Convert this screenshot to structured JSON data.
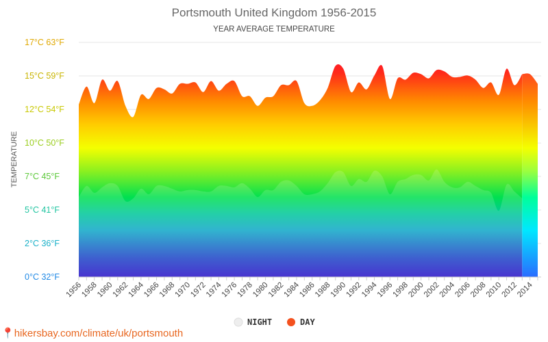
{
  "title": "Portsmouth United Kingdom 1956-2015",
  "subtitle": "YEAR AVERAGE TEMPERATURE",
  "credit": "hikersbay.com/climate/uk/portsmouth",
  "chart_data": {
    "type": "area",
    "title": "Portsmouth United Kingdom 1956-2015",
    "subtitle": "YEAR AVERAGE TEMPERATURE",
    "ylabel": "TEMPERATURE",
    "ylim": [
      0,
      17
    ],
    "yticks": [
      {
        "value": 0,
        "label": "0°C 32°F",
        "color": "#1e88e5"
      },
      {
        "value": 2.43,
        "label": "2°C 36°F",
        "color": "#1ab0c8"
      },
      {
        "value": 4.86,
        "label": "5°C 41°F",
        "color": "#1fc4a0"
      },
      {
        "value": 7.29,
        "label": "7°C 45°F",
        "color": "#5cc83a"
      },
      {
        "value": 9.71,
        "label": "10°C 50°F",
        "color": "#9acd1c"
      },
      {
        "value": 12.14,
        "label": "12°C 54°F",
        "color": "#c8c800"
      },
      {
        "value": 14.57,
        "label": "15°C 59°F",
        "color": "#c8b400"
      },
      {
        "value": 17,
        "label": "17°C 63°F",
        "color": "#e0a800"
      }
    ],
    "xtick_labels": [
      "1956",
      "1958",
      "1960",
      "1962",
      "1964",
      "1966",
      "1968",
      "1970",
      "1972",
      "1974",
      "1976",
      "1978",
      "1980",
      "1982",
      "1984",
      "1986",
      "1988",
      "1990",
      "1992",
      "1994",
      "1996",
      "1998",
      "2000",
      "2002",
      "2004",
      "2006",
      "2008",
      "2010",
      "2012",
      "2014"
    ],
    "years": [
      1956,
      1957,
      1958,
      1959,
      1960,
      1961,
      1962,
      1963,
      1964,
      1965,
      1966,
      1967,
      1968,
      1969,
      1970,
      1971,
      1972,
      1973,
      1974,
      1975,
      1976,
      1977,
      1978,
      1979,
      1980,
      1981,
      1982,
      1983,
      1984,
      1985,
      1986,
      1987,
      1988,
      1989,
      1990,
      1991,
      1992,
      1993,
      1994,
      1995,
      1996,
      1997,
      1998,
      1999,
      2000,
      2001,
      2002,
      2003,
      2004,
      2005,
      2006,
      2007,
      2008,
      2009,
      2010,
      2011,
      2012,
      2013,
      2014,
      2015
    ],
    "grid": true,
    "legend_position": "bottom",
    "series": [
      {
        "name": "NIGHT",
        "color": "#e0e0e0",
        "values": [
          5.8,
          6.6,
          6.1,
          6.5,
          6.8,
          6.6,
          5.5,
          5.7,
          6.4,
          6.0,
          6.6,
          6.6,
          6.4,
          6.2,
          6.3,
          6.3,
          6.2,
          6.2,
          6.6,
          6.6,
          6.5,
          6.8,
          6.4,
          5.8,
          6.3,
          6.3,
          6.9,
          7.0,
          6.6,
          6.0,
          6.0,
          6.2,
          6.8,
          7.6,
          7.6,
          6.6,
          7.1,
          6.9,
          7.7,
          7.3,
          6.0,
          6.9,
          7.1,
          7.4,
          7.4,
          7.0,
          7.8,
          6.9,
          6.5,
          6.5,
          6.9,
          6.6,
          6.3,
          6.1,
          4.8,
          6.7,
          6.2,
          5.7,
          null,
          null
        ]
      },
      {
        "name": "DAY",
        "color": "#f4511e",
        "values": [
          12.5,
          13.8,
          12.6,
          14.3,
          13.5,
          14.2,
          12.4,
          11.6,
          13.2,
          12.9,
          13.7,
          13.6,
          13.3,
          14.0,
          14.0,
          14.1,
          13.4,
          14.2,
          13.5,
          14.0,
          14.2,
          13.1,
          13.1,
          12.4,
          13.0,
          13.1,
          13.9,
          13.9,
          14.2,
          12.6,
          12.4,
          12.8,
          13.7,
          15.3,
          15.1,
          13.4,
          14.1,
          13.6,
          14.6,
          15.3,
          12.9,
          14.4,
          14.3,
          14.8,
          14.7,
          14.4,
          15.0,
          14.9,
          14.5,
          14.5,
          14.6,
          14.3,
          13.7,
          14.1,
          13.2,
          15.1,
          13.9,
          14.7,
          14.7,
          14.0
        ]
      }
    ]
  }
}
